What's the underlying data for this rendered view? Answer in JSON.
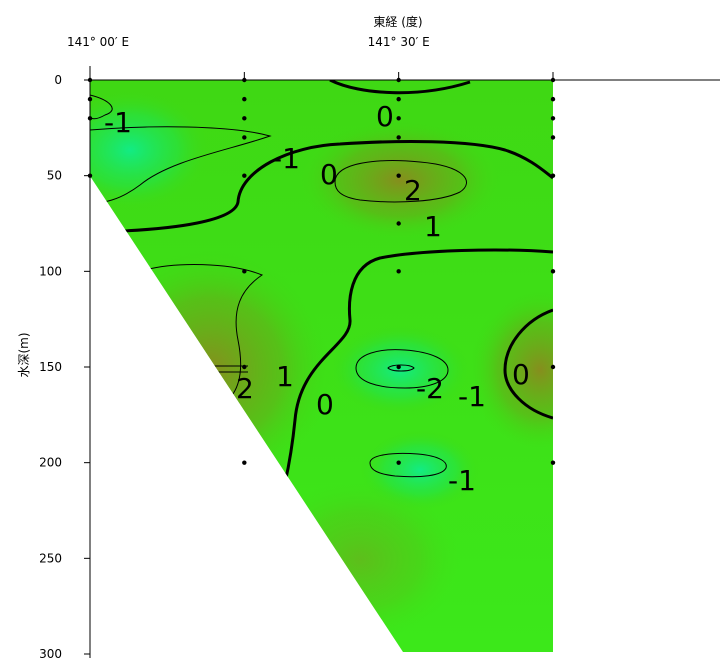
{
  "chart_data": {
    "type": "contour",
    "title": "",
    "x_axis_title": "東経 (度)",
    "y_axis_title": "水深(m)",
    "x_ticks": [
      {
        "value": 141.0,
        "label": "141° 00′ E"
      },
      {
        "value": 141.5,
        "label": "141° 30′ E"
      }
    ],
    "y_ticks": [
      0,
      50,
      100,
      150,
      200,
      250,
      300
    ],
    "ylim": [
      0,
      300
    ],
    "y_inverted": true,
    "stations": [
      {
        "x": 141.0,
        "depths": [
          0,
          10,
          20,
          50
        ]
      },
      {
        "x": 141.25,
        "depths": [
          0,
          10,
          20,
          30,
          50,
          100,
          150,
          200
        ]
      },
      {
        "x": 141.5,
        "depths": [
          0,
          10,
          20,
          30,
          50,
          75,
          100,
          150,
          200
        ]
      },
      {
        "x": 141.75,
        "depths": [
          0,
          10,
          20,
          30,
          50,
          100,
          150,
          200
        ]
      }
    ],
    "contour_labels": [
      "-1",
      "0",
      "-1",
      "0",
      "2",
      "1",
      "2",
      "1",
      "0",
      "-2",
      "-1",
      "0",
      "-1"
    ],
    "colors": {
      "fill_base": "#3fe00a",
      "fill_warm": "#7a8c1c",
      "fill_cool": "#18e86e"
    },
    "grid": false
  }
}
